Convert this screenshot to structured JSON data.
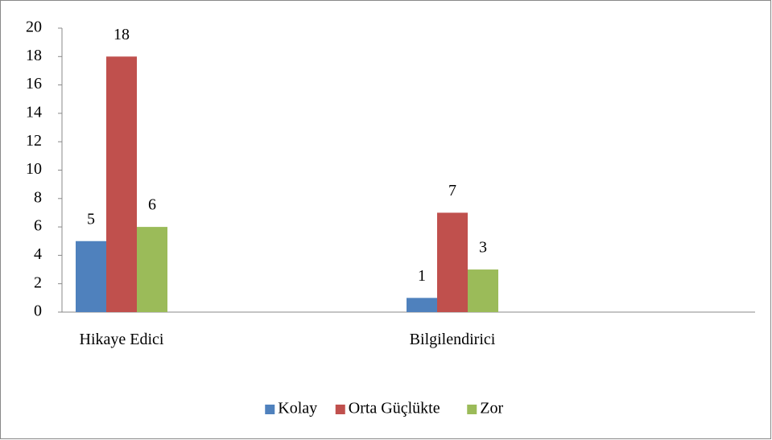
{
  "chart_data": {
    "type": "bar",
    "categories": [
      "Hikaye Edici",
      "Bilgilendirici"
    ],
    "series": [
      {
        "name": "Kolay",
        "color": "#4f81bd",
        "values": [
          5,
          1
        ]
      },
      {
        "name": "Orta Güçlükte",
        "color": "#c0504d",
        "values": [
          18,
          7
        ]
      },
      {
        "name": "Zor",
        "color": "#9bbb59",
        "values": [
          6,
          3
        ]
      }
    ],
    "ylim": [
      0,
      20
    ],
    "yticks": [
      0,
      2,
      4,
      6,
      8,
      10,
      12,
      14,
      16,
      18,
      20
    ],
    "grid": false,
    "legend": "bottom"
  }
}
